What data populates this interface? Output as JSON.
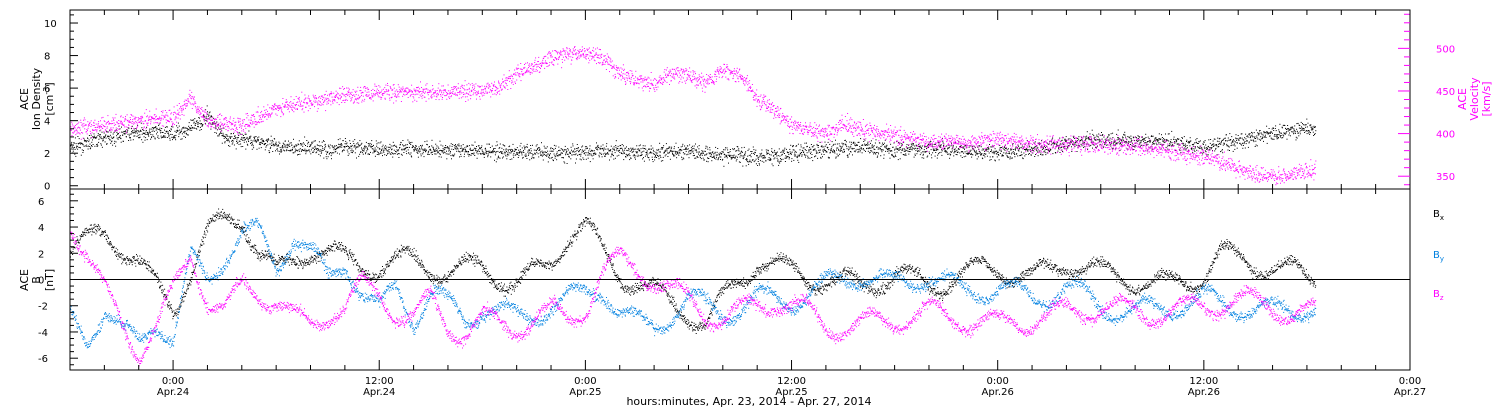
{
  "chart_data": [
    {
      "type": "scatter",
      "x_axis": {
        "ticks": [
          {
            "time": "0:00",
            "date": "Apr.24",
            "hour": 6
          },
          {
            "time": "12:00",
            "date": "Apr.24",
            "hour": 18
          },
          {
            "time": "0:00",
            "date": "Apr.25",
            "hour": 30
          },
          {
            "time": "12:00",
            "date": "Apr.25",
            "hour": 42
          },
          {
            "time": "0:00",
            "date": "Apr.26",
            "hour": 54
          },
          {
            "time": "12:00",
            "date": "Apr.26",
            "hour": 66
          },
          {
            "time": "0:00",
            "date": "Apr.27",
            "hour": 78
          }
        ],
        "range": [
          0,
          78
        ],
        "data_end": 72.5,
        "label": "hours:minutes, Apr. 23, 2014 - Apr. 27, 2014"
      },
      "left_axis": {
        "label_lines": [
          "ACE",
          "Ion Density"
        ],
        "unit": "[cm",
        "unit_sup": "-3",
        "unit_end": "]",
        "range": [
          -0.2,
          10.8
        ],
        "ticks": [
          "0",
          "2",
          "4",
          "6",
          "8",
          "10"
        ],
        "tick_values": [
          0,
          2,
          4,
          6,
          8,
          10
        ],
        "color": "#000000"
      },
      "right_axis": {
        "label_lines": [
          "ACE",
          "Velocity",
          "[km/s]"
        ],
        "range": [
          335,
          545
        ],
        "ticks": [
          "350",
          "400",
          "450",
          "500"
        ],
        "tick_values": [
          350,
          400,
          450,
          500
        ],
        "color": "#ff00ff"
      },
      "series": [
        {
          "color": "#000000",
          "axis": "left",
          "anchors": [
            [
              0,
              2.3
            ],
            [
              2,
              3.0
            ],
            [
              4,
              3.3
            ],
            [
              6,
              3.2
            ],
            [
              7,
              3.6
            ],
            [
              8,
              4.3
            ],
            [
              9,
              3.0
            ],
            [
              10,
              2.8
            ],
            [
              11,
              2.7
            ],
            [
              12,
              2.5
            ],
            [
              13,
              2.3
            ],
            [
              14,
              2.4
            ],
            [
              15,
              2.2
            ],
            [
              16,
              2.4
            ],
            [
              18,
              2.3
            ],
            [
              20,
              2.3
            ],
            [
              22,
              2.2
            ],
            [
              24,
              2.2
            ],
            [
              26,
              2.1
            ],
            [
              28,
              2.0
            ],
            [
              30,
              2.1
            ],
            [
              32,
              2.2
            ],
            [
              34,
              2.0
            ],
            [
              36,
              2.2
            ],
            [
              38,
              1.9
            ],
            [
              40,
              1.8
            ],
            [
              42,
              2.0
            ],
            [
              44,
              2.2
            ],
            [
              46,
              2.4
            ],
            [
              48,
              2.2
            ],
            [
              50,
              2.3
            ],
            [
              52,
              2.2
            ],
            [
              54,
              2.1
            ],
            [
              56,
              2.2
            ],
            [
              58,
              2.6
            ],
            [
              60,
              2.9
            ],
            [
              62,
              2.8
            ],
            [
              64,
              2.7
            ],
            [
              66,
              2.4
            ],
            [
              68,
              2.8
            ],
            [
              70,
              3.2
            ],
            [
              72,
              3.6
            ]
          ]
        },
        {
          "color": "#ff00ff",
          "axis": "right",
          "anchors": [
            [
              0,
              405
            ],
            [
              2,
              410
            ],
            [
              4,
              415
            ],
            [
              6,
              420
            ],
            [
              7,
              440
            ],
            [
              8,
              415
            ],
            [
              10,
              410
            ],
            [
              12,
              430
            ],
            [
              14,
              438
            ],
            [
              16,
              445
            ],
            [
              18,
              448
            ],
            [
              20,
              450
            ],
            [
              22,
              448
            ],
            [
              24,
              452
            ],
            [
              25,
              455
            ],
            [
              26,
              470
            ],
            [
              27,
              480
            ],
            [
              28,
              490
            ],
            [
              30,
              495
            ],
            [
              31,
              490
            ],
            [
              32,
              470
            ],
            [
              34,
              460
            ],
            [
              35,
              470
            ],
            [
              36,
              468
            ],
            [
              37,
              460
            ],
            [
              38,
              475
            ],
            [
              39,
              470
            ],
            [
              40,
              440
            ],
            [
              41,
              428
            ],
            [
              42,
              410
            ],
            [
              44,
              400
            ],
            [
              45,
              412
            ],
            [
              46,
              405
            ],
            [
              48,
              398
            ],
            [
              50,
              392
            ],
            [
              52,
              390
            ],
            [
              54,
              393
            ],
            [
              56,
              388
            ],
            [
              58,
              388
            ],
            [
              60,
              388
            ],
            [
              62,
              385
            ],
            [
              64,
              380
            ],
            [
              66,
              374
            ],
            [
              67,
              368
            ],
            [
              68,
              358
            ],
            [
              69,
              352
            ],
            [
              70,
              350
            ],
            [
              71,
              353
            ],
            [
              72,
              357
            ]
          ]
        }
      ]
    },
    {
      "type": "scatter",
      "x_axis": {
        "range": [
          0,
          78
        ],
        "data_end": 72.5
      },
      "left_axis": {
        "label_lines": [
          "ACE",
          "B"
        ],
        "unit": "[nT]",
        "range": [
          -6.9,
          6.9
        ],
        "ticks": [
          "-6",
          "-4",
          "-2",
          "0",
          "2",
          "4",
          "6"
        ],
        "tick_values": [
          -6,
          -4,
          -2,
          0,
          2,
          4,
          6
        ]
      },
      "zero_line": true,
      "series": [
        {
          "label": "B",
          "sub": "x",
          "color": "#000000",
          "anchors": [
            [
              0,
              2.0
            ],
            [
              2,
              3.8
            ],
            [
              3,
              2.5
            ],
            [
              4,
              1.0
            ],
            [
              6,
              -2.0
            ],
            [
              7,
              0.5
            ],
            [
              8,
              3.5
            ],
            [
              9,
              4.6
            ],
            [
              10,
              4.9
            ],
            [
              11,
              2.0
            ],
            [
              12,
              0.5
            ],
            [
              14,
              2.5
            ],
            [
              16,
              1.5
            ],
            [
              18,
              1.0
            ],
            [
              20,
              1.5
            ],
            [
              22,
              0.5
            ],
            [
              24,
              1.0
            ],
            [
              26,
              -0.5
            ],
            [
              28,
              1.5
            ],
            [
              29,
              3.5
            ],
            [
              30,
              4.0
            ],
            [
              31,
              2.0
            ],
            [
              32,
              0.5
            ],
            [
              34,
              -1.0
            ],
            [
              36,
              -2.5
            ],
            [
              37,
              -3.5
            ],
            [
              38,
              -1.5
            ],
            [
              40,
              1.5
            ],
            [
              42,
              0.5
            ],
            [
              44,
              0.0
            ],
            [
              46,
              -0.5
            ],
            [
              48,
              0.5
            ],
            [
              50,
              -0.5
            ],
            [
              52,
              0.5
            ],
            [
              54,
              1.0
            ],
            [
              56,
              0.0
            ],
            [
              58,
              1.5
            ],
            [
              60,
              0.5
            ],
            [
              62,
              0.0
            ],
            [
              64,
              -0.5
            ],
            [
              66,
              0.5
            ],
            [
              67,
              2.0
            ],
            [
              68,
              1.5
            ],
            [
              70,
              1.0
            ],
            [
              72,
              0.2
            ]
          ]
        },
        {
          "label": "B",
          "sub": "y",
          "color": "#0080e0",
          "anchors": [
            [
              0,
              -3.0
            ],
            [
              1,
              -4.5
            ],
            [
              2,
              -2.0
            ],
            [
              3,
              -4.0
            ],
            [
              4,
              -5.0
            ],
            [
              5,
              -3.0
            ],
            [
              6,
              -4.5
            ],
            [
              7,
              1.5
            ],
            [
              8,
              0.0
            ],
            [
              9,
              2.0
            ],
            [
              10,
              3.5
            ],
            [
              11,
              3.5
            ],
            [
              12,
              1.0
            ],
            [
              13,
              3.5
            ],
            [
              14,
              2.0
            ],
            [
              15,
              0.0
            ],
            [
              16,
              1.5
            ],
            [
              17,
              -1.0
            ],
            [
              18,
              -2.5
            ],
            [
              19,
              -0.5
            ],
            [
              20,
              -3.0
            ],
            [
              21,
              -1.0
            ],
            [
              22,
              -2.0
            ],
            [
              23,
              -3.0
            ],
            [
              24,
              -2.0
            ],
            [
              26,
              -3.0
            ],
            [
              28,
              -2.0
            ],
            [
              30,
              -1.0
            ],
            [
              31,
              -0.5
            ],
            [
              32,
              -2.5
            ],
            [
              33,
              -3.5
            ],
            [
              34,
              -3.5
            ],
            [
              35,
              -2.5
            ],
            [
              36,
              -1.5
            ],
            [
              38,
              -2.5
            ],
            [
              40,
              -1.5
            ],
            [
              42,
              -1.5
            ],
            [
              44,
              -0.5
            ],
            [
              46,
              0.5
            ],
            [
              48,
              -0.5
            ],
            [
              50,
              0.5
            ],
            [
              52,
              -1.0
            ],
            [
              54,
              -0.5
            ],
            [
              56,
              -1.5
            ],
            [
              58,
              -0.5
            ],
            [
              60,
              -2.0
            ],
            [
              62,
              -2.5
            ],
            [
              64,
              -2.0
            ],
            [
              66,
              -1.5
            ],
            [
              68,
              -2.0
            ],
            [
              70,
              -2.5
            ],
            [
              72,
              -2.0
            ]
          ]
        },
        {
          "label": "B",
          "sub": "z",
          "color": "#ff00ff",
          "anchors": [
            [
              0,
              4.5
            ],
            [
              1,
              2.0
            ],
            [
              2,
              -1.0
            ],
            [
              3,
              -3.5
            ],
            [
              4,
              -5.5
            ],
            [
              5,
              -3.5
            ],
            [
              6,
              -1.0
            ],
            [
              7,
              2.0
            ],
            [
              8,
              -1.5
            ],
            [
              9,
              -2.5
            ],
            [
              10,
              -0.5
            ],
            [
              12,
              -1.5
            ],
            [
              13,
              -3.0
            ],
            [
              14,
              -3.5
            ],
            [
              15,
              -2.5
            ],
            [
              16,
              -2.0
            ],
            [
              17,
              -0.5
            ],
            [
              18,
              -1.0
            ],
            [
              19,
              -2.5
            ],
            [
              20,
              -3.0
            ],
            [
              21,
              -1.5
            ],
            [
              22,
              -3.5
            ],
            [
              23,
              -4.0
            ],
            [
              24,
              -3.0
            ],
            [
              25,
              -3.5
            ],
            [
              26,
              -3.5
            ],
            [
              27,
              -3.0
            ],
            [
              28,
              -2.5
            ],
            [
              29,
              -3.0
            ],
            [
              30,
              -2.0
            ],
            [
              31,
              0.5
            ],
            [
              32,
              1.5
            ],
            [
              33,
              1.0
            ],
            [
              34,
              0.0
            ],
            [
              35,
              -1.0
            ],
            [
              36,
              -1.5
            ],
            [
              37,
              -2.5
            ],
            [
              38,
              -3.0
            ],
            [
              39,
              -2.5
            ],
            [
              40,
              -2.0
            ],
            [
              41,
              -1.5
            ],
            [
              42,
              -2.0
            ],
            [
              43,
              -2.5
            ],
            [
              44,
              -3.5
            ],
            [
              46,
              -3.5
            ],
            [
              48,
              -3.0
            ],
            [
              50,
              -2.5
            ],
            [
              52,
              -3.0
            ],
            [
              54,
              -3.5
            ],
            [
              56,
              -3.0
            ],
            [
              58,
              -2.5
            ],
            [
              60,
              -2.0
            ],
            [
              62,
              -2.5
            ],
            [
              64,
              -2.5
            ],
            [
              66,
              -2.0
            ],
            [
              68,
              -1.5
            ],
            [
              70,
              -2.0
            ],
            [
              71,
              -2.5
            ],
            [
              72,
              -2.5
            ]
          ]
        }
      ]
    }
  ]
}
